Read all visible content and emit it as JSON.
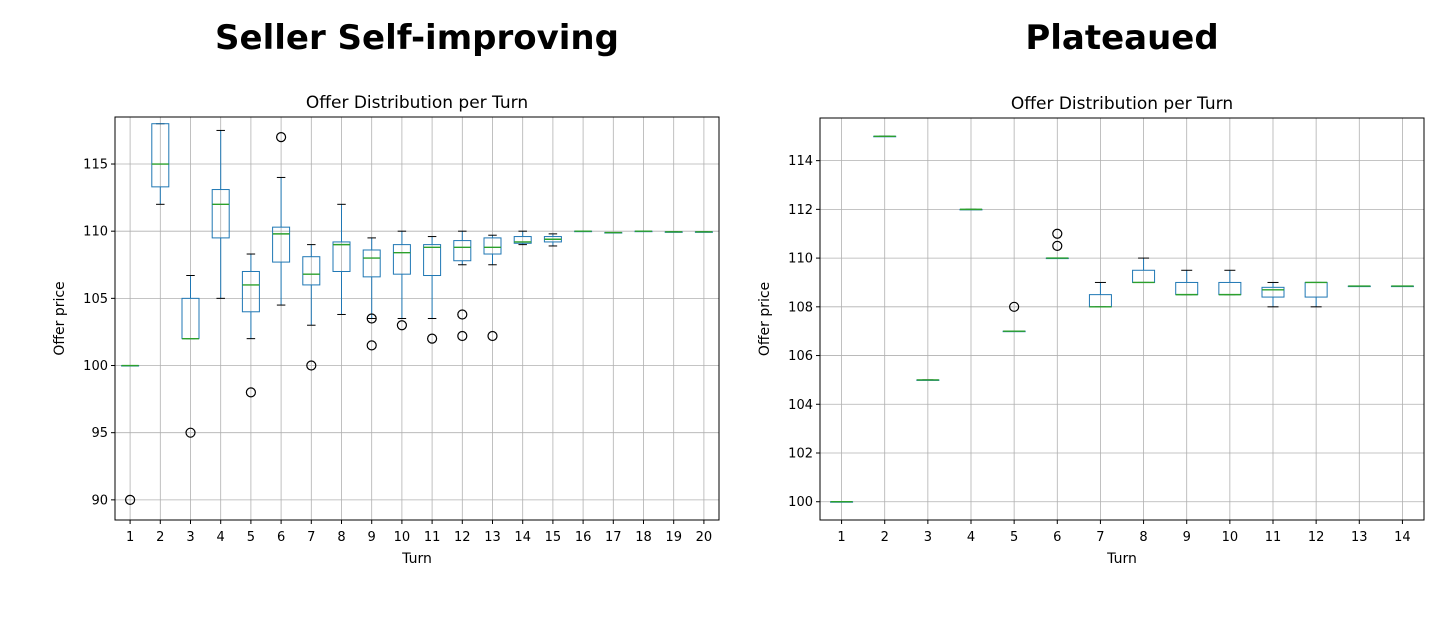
{
  "headings": {
    "left": "Seller Self-improving",
    "right": "Plateaued"
  },
  "colors": {
    "box": "#1f77b4",
    "median": "#2ca02c",
    "whisker_cap": "#000000",
    "grid": "#b0b0b0",
    "flier": "#000000"
  },
  "chart_data": [
    {
      "type": "box",
      "title": "Offer Distribution per Turn",
      "xlabel": "Turn",
      "ylabel": "Offer price",
      "ylim": [
        88.5,
        118.5
      ],
      "yticks": [
        90,
        95,
        100,
        105,
        110,
        115
      ],
      "grid": true,
      "categories": [
        "1",
        "2",
        "3",
        "4",
        "5",
        "6",
        "7",
        "8",
        "9",
        "10",
        "11",
        "12",
        "13",
        "14",
        "15",
        "16",
        "17",
        "18",
        "19",
        "20"
      ],
      "boxes": [
        {
          "whislo": 100,
          "q1": 100,
          "med": 100,
          "q3": 100,
          "whishi": 100,
          "fliers": [
            90
          ]
        },
        {
          "whislo": 112,
          "q1": 113.3,
          "med": 115,
          "q3": 118,
          "whishi": 118,
          "fliers": []
        },
        {
          "whislo": 102,
          "q1": 102,
          "med": 102,
          "q3": 105,
          "whishi": 106.7,
          "fliers": [
            95
          ]
        },
        {
          "whislo": 105,
          "q1": 109.5,
          "med": 112,
          "q3": 113.1,
          "whishi": 117.5,
          "fliers": []
        },
        {
          "whislo": 102,
          "q1": 104,
          "med": 106,
          "q3": 107,
          "whishi": 108.3,
          "fliers": [
            98
          ]
        },
        {
          "whislo": 104.5,
          "q1": 107.7,
          "med": 109.8,
          "q3": 110.3,
          "whishi": 114,
          "fliers": [
            117
          ]
        },
        {
          "whislo": 103,
          "q1": 106,
          "med": 106.8,
          "q3": 108.1,
          "whishi": 109,
          "fliers": [
            100
          ]
        },
        {
          "whislo": 103.8,
          "q1": 107,
          "med": 109,
          "q3": 109.2,
          "whishi": 112,
          "fliers": []
        },
        {
          "whislo": 103.5,
          "q1": 106.6,
          "med": 108,
          "q3": 108.6,
          "whishi": 109.5,
          "fliers": [
            103.5,
            101.5
          ]
        },
        {
          "whislo": 103.5,
          "q1": 106.8,
          "med": 108.4,
          "q3": 109,
          "whishi": 110,
          "fliers": [
            103
          ]
        },
        {
          "whislo": 103.5,
          "q1": 106.7,
          "med": 108.8,
          "q3": 109,
          "whishi": 109.6,
          "fliers": [
            102
          ]
        },
        {
          "whislo": 107.5,
          "q1": 107.8,
          "med": 108.8,
          "q3": 109.3,
          "whishi": 110,
          "fliers": [
            103.8,
            102.2
          ]
        },
        {
          "whislo": 107.5,
          "q1": 108.3,
          "med": 108.8,
          "q3": 109.5,
          "whishi": 109.7,
          "fliers": [
            102.2
          ]
        },
        {
          "whislo": 109,
          "q1": 109.1,
          "med": 109.2,
          "q3": 109.6,
          "whishi": 110,
          "fliers": []
        },
        {
          "whislo": 108.9,
          "q1": 109.2,
          "med": 109.4,
          "q3": 109.6,
          "whishi": 109.8,
          "fliers": []
        },
        {
          "whislo": 110,
          "q1": 110,
          "med": 110,
          "q3": 110,
          "whishi": 110,
          "fliers": []
        },
        {
          "whislo": 109.9,
          "q1": 109.9,
          "med": 109.9,
          "q3": 109.9,
          "whishi": 109.9,
          "fliers": []
        },
        {
          "whislo": 110,
          "q1": 110,
          "med": 110,
          "q3": 110,
          "whishi": 110,
          "fliers": []
        },
        {
          "whislo": 109.95,
          "q1": 109.95,
          "med": 109.95,
          "q3": 109.95,
          "whishi": 109.95,
          "fliers": []
        },
        {
          "whislo": 109.95,
          "q1": 109.95,
          "med": 109.95,
          "q3": 109.95,
          "whishi": 109.95,
          "fliers": []
        }
      ]
    },
    {
      "type": "box",
      "title": "Offer Distribution per Turn",
      "xlabel": "Turn",
      "ylabel": "Offer price",
      "ylim": [
        99.25,
        115.75
      ],
      "yticks": [
        100,
        102,
        104,
        106,
        108,
        110,
        112,
        114
      ],
      "grid": true,
      "categories": [
        "1",
        "2",
        "3",
        "4",
        "5",
        "6",
        "7",
        "8",
        "9",
        "10",
        "11",
        "12",
        "13",
        "14"
      ],
      "boxes": [
        {
          "whislo": 100,
          "q1": 100,
          "med": 100,
          "q3": 100,
          "whishi": 100,
          "fliers": []
        },
        {
          "whislo": 115,
          "q1": 115,
          "med": 115,
          "q3": 115,
          "whishi": 115,
          "fliers": []
        },
        {
          "whislo": 105,
          "q1": 105,
          "med": 105,
          "q3": 105,
          "whishi": 105,
          "fliers": []
        },
        {
          "whislo": 112,
          "q1": 112,
          "med": 112,
          "q3": 112,
          "whishi": 112,
          "fliers": []
        },
        {
          "whislo": 107,
          "q1": 107,
          "med": 107,
          "q3": 107,
          "whishi": 107,
          "fliers": [
            108
          ]
        },
        {
          "whislo": 110,
          "q1": 110,
          "med": 110,
          "q3": 110,
          "whishi": 110,
          "fliers": [
            111,
            110.5
          ]
        },
        {
          "whislo": 108,
          "q1": 108,
          "med": 108,
          "q3": 108.5,
          "whishi": 109,
          "fliers": []
        },
        {
          "whislo": 109,
          "q1": 109,
          "med": 109,
          "q3": 109.5,
          "whishi": 110,
          "fliers": []
        },
        {
          "whislo": 108.5,
          "q1": 108.5,
          "med": 108.5,
          "q3": 109,
          "whishi": 109.5,
          "fliers": []
        },
        {
          "whislo": 108.5,
          "q1": 108.5,
          "med": 108.5,
          "q3": 109,
          "whishi": 109.5,
          "fliers": []
        },
        {
          "whislo": 108,
          "q1": 108.4,
          "med": 108.7,
          "q3": 108.8,
          "whishi": 109,
          "fliers": []
        },
        {
          "whislo": 108,
          "q1": 108.4,
          "med": 109,
          "q3": 109,
          "whishi": 109,
          "fliers": []
        },
        {
          "whislo": 108.85,
          "q1": 108.85,
          "med": 108.85,
          "q3": 108.85,
          "whishi": 108.85,
          "fliers": []
        },
        {
          "whislo": 108.85,
          "q1": 108.85,
          "med": 108.85,
          "q3": 108.85,
          "whishi": 108.85,
          "fliers": []
        }
      ]
    }
  ]
}
